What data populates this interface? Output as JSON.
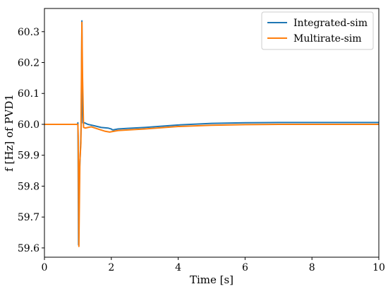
{
  "chart_data": {
    "type": "line",
    "title": "",
    "xlabel": "Time [s]",
    "ylabel": "f [Hz] of PVD1",
    "xlim": [
      0,
      10
    ],
    "ylim": [
      59.57,
      60.375
    ],
    "xticks": [
      0,
      2,
      4,
      6,
      8,
      10
    ],
    "yticks": [
      59.6,
      59.7,
      59.8,
      59.9,
      60.0,
      60.1,
      60.2,
      60.3
    ],
    "xtick_labels": [
      "0",
      "2",
      "4",
      "6",
      "8",
      "10"
    ],
    "ytick_labels": [
      "59.6",
      "59.7",
      "59.8",
      "59.9",
      "60.0",
      "60.1",
      "60.2",
      "60.3"
    ],
    "grid": false,
    "legend_position": "top-right",
    "series": [
      {
        "name": "Integrated-sim",
        "color": "#1f77b4",
        "x": [
          0,
          0.99,
          1.0,
          1.005,
          1.02,
          1.05,
          1.08,
          1.1,
          1.12,
          1.13,
          1.15,
          1.2,
          1.3,
          1.5,
          1.7,
          1.9,
          2.0,
          2.02,
          2.05,
          2.2,
          2.5,
          3.0,
          4.0,
          5.0,
          6.0,
          7.0,
          8.0,
          9.0,
          10.0
        ],
        "y": [
          60.0,
          60.0,
          60.005,
          59.95,
          59.61,
          59.85,
          59.93,
          60.0,
          60.335,
          60.1,
          60.005,
          60.005,
          60.0,
          59.995,
          59.99,
          59.988,
          59.985,
          59.983,
          59.982,
          59.985,
          59.987,
          59.99,
          59.998,
          60.003,
          60.005,
          60.006,
          60.006,
          60.006,
          60.006
        ]
      },
      {
        "name": "Multirate-sim",
        "color": "#ff7f0e",
        "x": [
          0,
          0.99,
          1.0,
          1.01,
          1.03,
          1.06,
          1.09,
          1.11,
          1.12,
          1.14,
          1.17,
          1.22,
          1.3,
          1.4,
          1.6,
          1.8,
          1.95,
          2.05,
          2.2,
          2.5,
          3.0,
          4.0,
          5.0,
          6.0,
          7.0,
          8.0,
          9.0,
          10.0
        ],
        "y": [
          60.0,
          60.0,
          60.0,
          59.96,
          59.605,
          59.88,
          59.94,
          60.2,
          60.33,
          60.15,
          59.99,
          59.988,
          59.99,
          59.992,
          59.985,
          59.978,
          59.975,
          59.977,
          59.98,
          59.982,
          59.985,
          59.993,
          59.997,
          59.999,
          60.0,
          60.0,
          60.0,
          60.0
        ]
      }
    ]
  }
}
